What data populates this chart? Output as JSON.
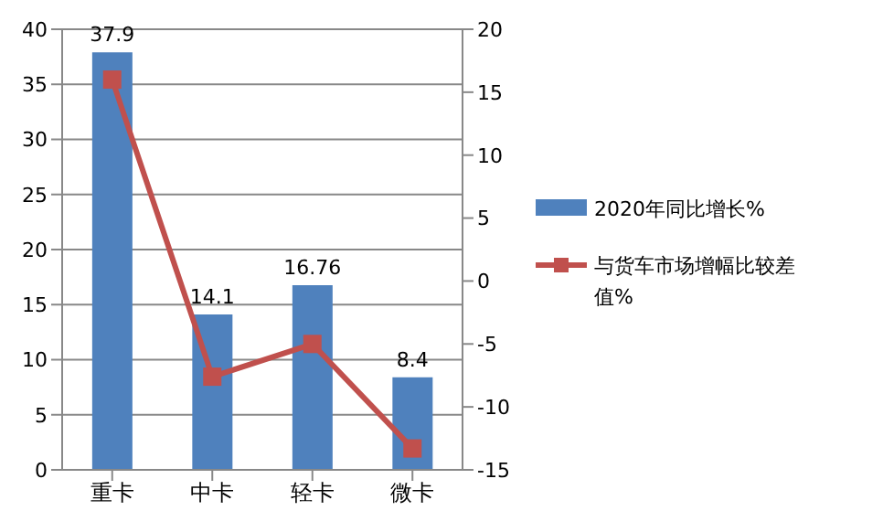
{
  "chart_data": {
    "type": "bar",
    "categories": [
      "重卡",
      "中卡",
      "轻卡",
      "微卡"
    ],
    "series": [
      {
        "name": "2020年同比增长%",
        "color": "#4f81bd",
        "values": [
          37.9,
          14.1,
          16.76,
          8.4
        ],
        "value_labels": [
          "37.9",
          "14.1",
          "16.76",
          "8.4"
        ]
      },
      {
        "name": "与货车市场增幅比较差值%",
        "type": "line",
        "axis": "y2",
        "color": "#c0504d",
        "values": [
          16,
          -7.6,
          -5,
          -13.3
        ],
        "marker": "square"
      }
    ],
    "ylim": [
      0,
      40
    ],
    "yticks": [
      0,
      5,
      10,
      15,
      20,
      25,
      30,
      35,
      40
    ],
    "y2lim": [
      -15,
      20
    ],
    "y2ticks": [
      -15,
      -10,
      -5,
      0,
      5,
      10,
      15,
      20
    ],
    "grid": "y",
    "legend": "right"
  }
}
